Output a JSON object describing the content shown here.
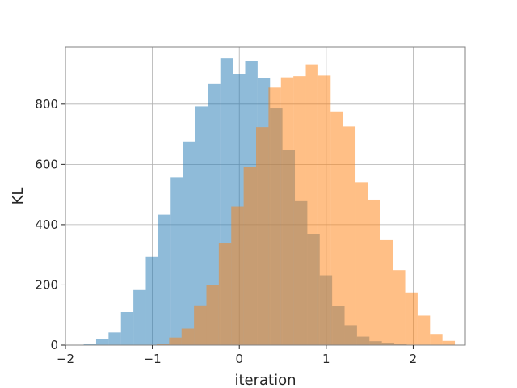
{
  "chart_data": {
    "type": "bar",
    "xlabel": "iteration",
    "ylabel": "KL",
    "xlim": [
      -2.0,
      2.6
    ],
    "ylim": [
      0,
      990
    ],
    "grid": true,
    "xticks": [
      -2,
      -1,
      0,
      1,
      2
    ],
    "xtick_labels": [
      "−2",
      "−1",
      "0",
      "1",
      "2"
    ],
    "yticks": [
      0,
      200,
      400,
      600,
      800
    ],
    "ytick_labels": [
      "0",
      "200",
      "400",
      "600",
      "800"
    ],
    "series": [
      {
        "color": "#1f77b4",
        "opacity": 0.5,
        "bin_start": -1.79,
        "bin_width": 0.1429,
        "values": [
          5,
          20,
          42,
          110,
          183,
          293,
          433,
          557,
          674,
          793,
          867,
          952,
          900,
          943,
          888,
          786,
          648,
          478,
          369,
          232,
          131,
          66,
          28,
          13,
          8,
          3
        ]
      },
      {
        "color": "#ff7f0e",
        "opacity": 0.5,
        "bin_start": -0.95,
        "bin_width": 0.1429,
        "values": [
          3,
          25,
          55,
          132,
          200,
          338,
          460,
          592,
          724,
          855,
          889,
          893,
          932,
          895,
          776,
          726,
          541,
          483,
          349,
          249,
          175,
          98,
          37,
          14
        ]
      }
    ]
  }
}
